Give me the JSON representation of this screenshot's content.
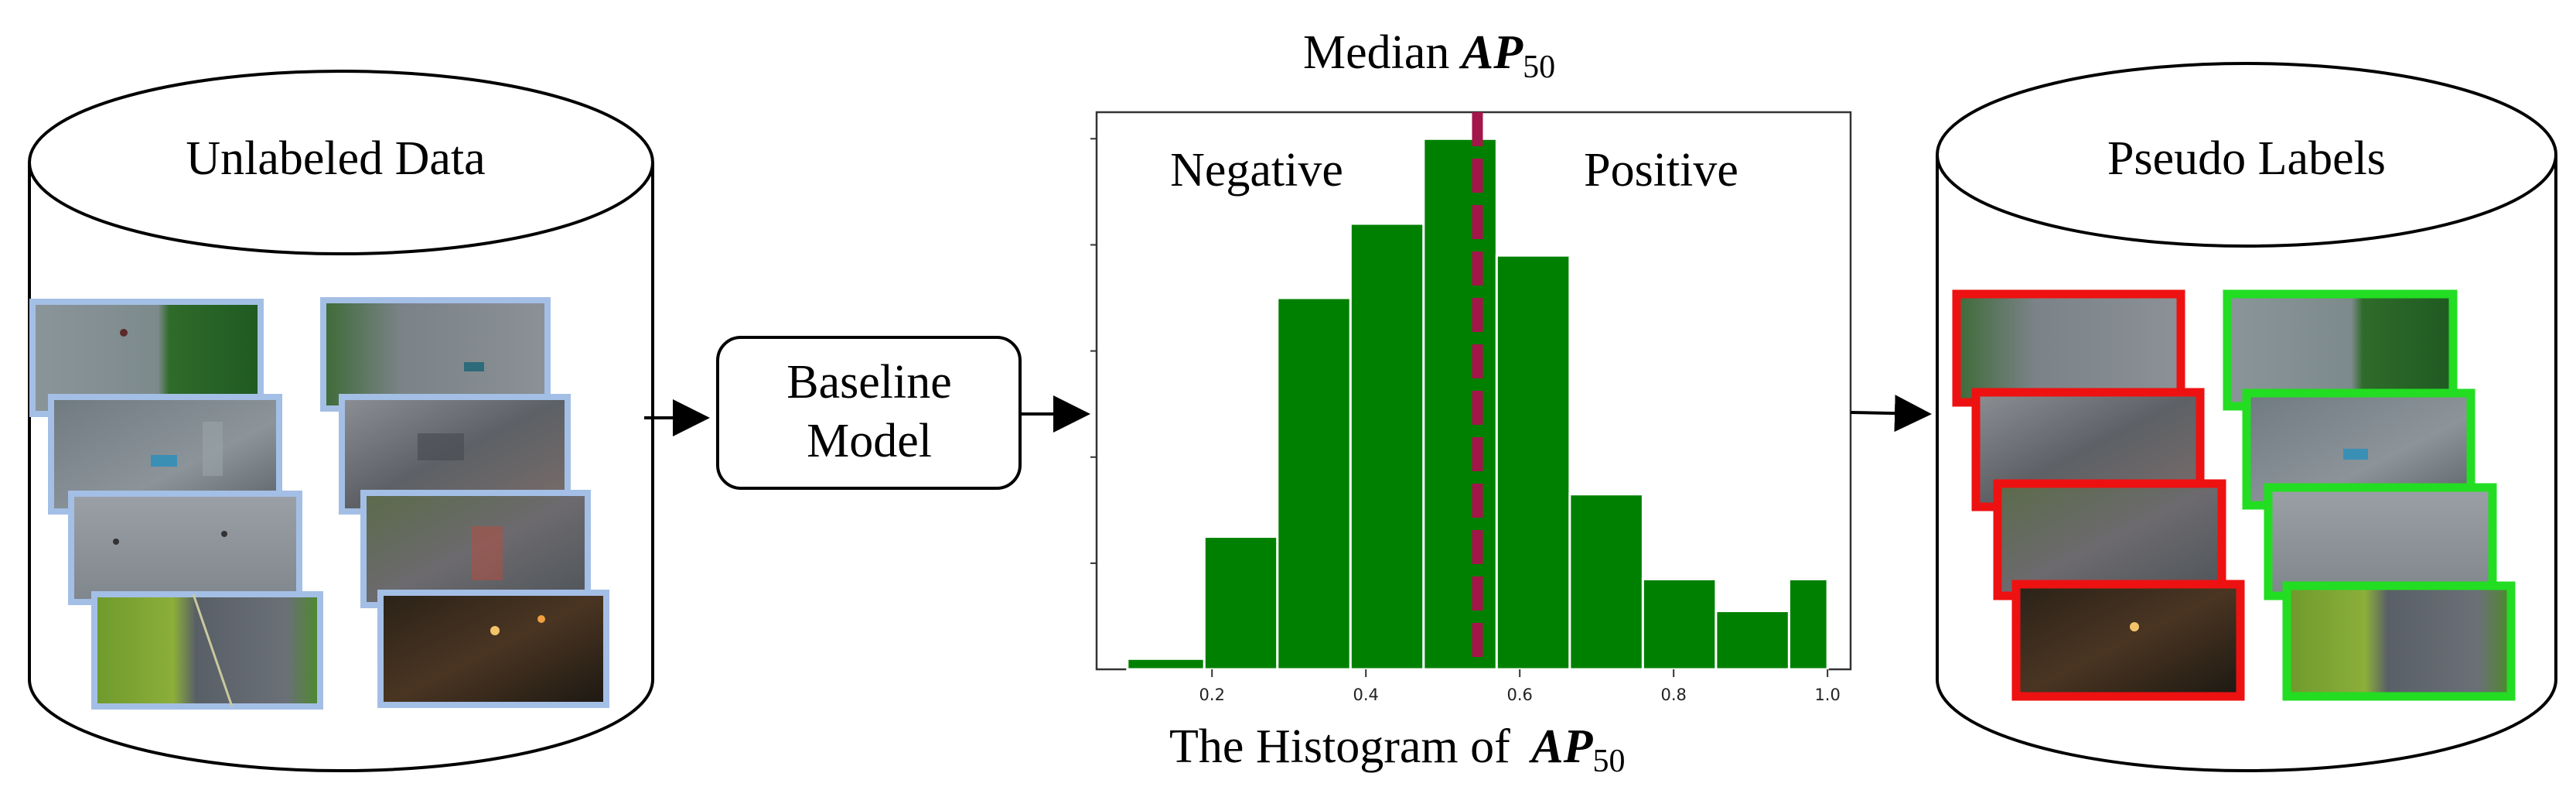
{
  "left_db": {
    "title": "Unlabeled Data",
    "frame_color": "#a4bfe6"
  },
  "model_box": {
    "line1": "Baseline",
    "line2": "Model"
  },
  "histogram": {
    "top_label_prefix": "Median ",
    "bottom_label_prefix": "The Histogram of ",
    "metric_main": "AP",
    "metric_sub": "50",
    "negative_label": "Negative",
    "positive_label": "Positive",
    "bar_color": "#008000",
    "median_line_color": "#a3164a"
  },
  "chart_data": {
    "type": "bar",
    "title": "",
    "xlabel": "",
    "ylabel": "",
    "xlim": [
      0.05,
      1.03
    ],
    "ylim": [
      0,
      1.05
    ],
    "x_ticks": [
      "0.2",
      "0.4",
      "0.6",
      "0.8",
      "1.0"
    ],
    "x_tick_values": [
      0.2,
      0.4,
      0.6,
      0.8,
      1.0
    ],
    "bin_edges": [
      0.09,
      0.19,
      0.285,
      0.38,
      0.475,
      0.57,
      0.665,
      0.76,
      0.855,
      0.95,
      1.0
    ],
    "values": [
      0.02,
      0.25,
      0.7,
      0.84,
      1.0,
      0.78,
      0.33,
      0.17,
      0.11,
      0.17
    ],
    "median": 0.545
  },
  "right_db": {
    "title": "Pseudo Labels",
    "negative_color": "#ee1111",
    "positive_color": "#22dd22"
  }
}
